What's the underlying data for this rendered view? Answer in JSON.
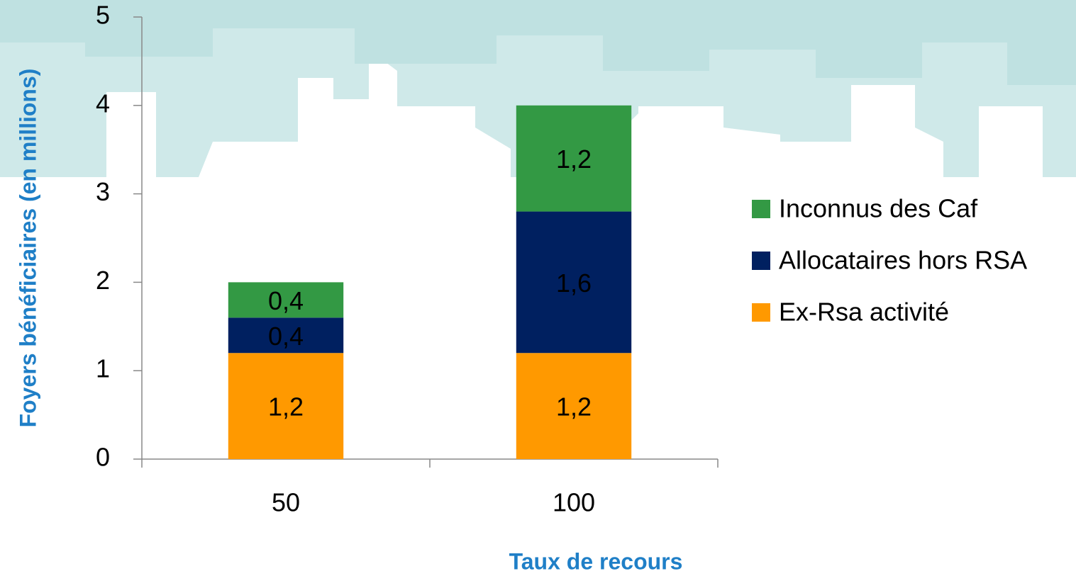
{
  "chart_data": {
    "type": "bar",
    "stacked": true,
    "x_label": "Taux de recours",
    "y_label": "Foyers bénéficiaires (en millions)",
    "categories": [
      "50",
      "100"
    ],
    "series": [
      {
        "name": "Ex-Rsa activité",
        "color": "#ff9900",
        "values": [
          1.2,
          1.2
        ],
        "value_labels": [
          "1,2",
          "1,2"
        ]
      },
      {
        "name": "Allocataires hors RSA",
        "color": "#002060",
        "values": [
          0.4,
          1.6
        ],
        "value_labels": [
          "0,4",
          "1,6"
        ]
      },
      {
        "name": "Inconnus des Caf",
        "color": "#339944",
        "values": [
          0.4,
          1.2
        ],
        "value_labels": [
          "0,4",
          "1,2"
        ]
      }
    ],
    "ylim": [
      0,
      5
    ],
    "yticks": [
      0,
      1,
      2,
      3,
      4,
      5
    ],
    "grid": false,
    "legend": "right"
  }
}
